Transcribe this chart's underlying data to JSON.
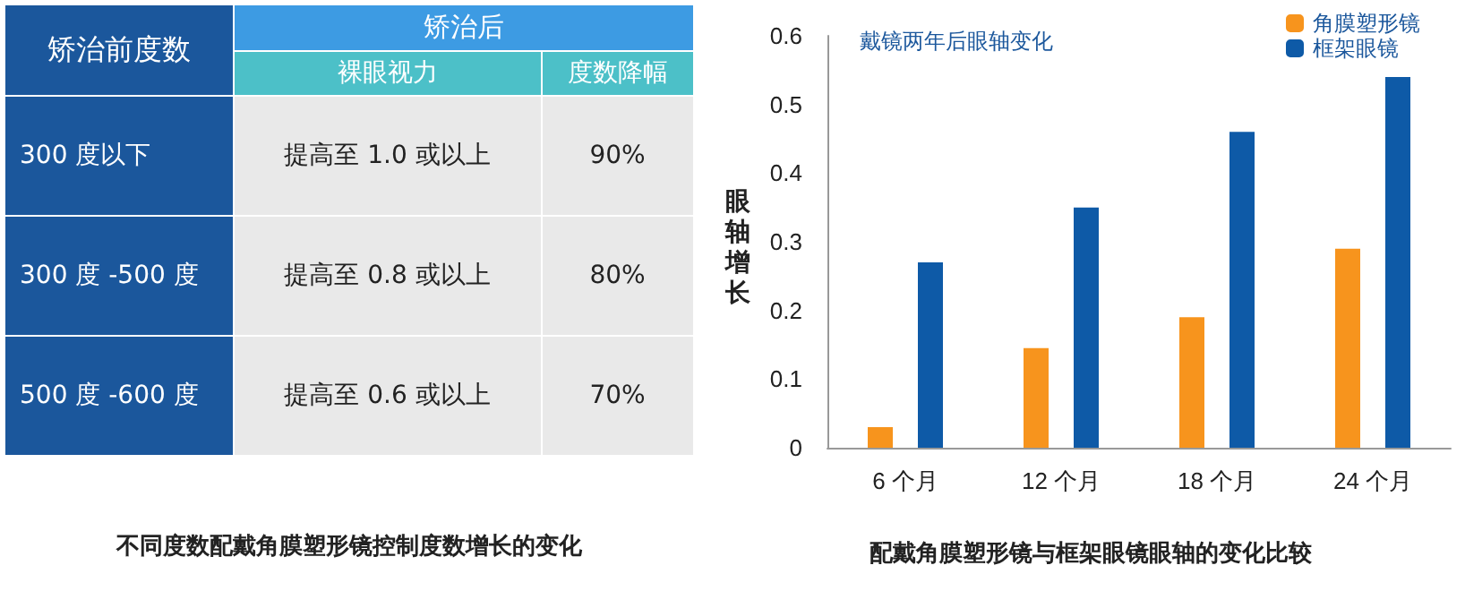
{
  "chart_data": [
    {
      "type": "other",
      "title": "不同度数配戴角膜塑形镜控制度数增长的变化",
      "annotations": [
        "矫治前度数",
        "矫治后",
        "裸眼视力",
        "度数降幅",
        "300 度以下",
        "提高至 1.0 或以上",
        "90%",
        "300 度 -500 度",
        "提高至 0.8 或以上",
        "80%",
        "500 度 -600 度",
        "提高至 0.6 或以上",
        "70%"
      ]
    },
    {
      "type": "bar",
      "title": "戴镜两年后眼轴变化",
      "ylabel": "眼轴增长",
      "annotations": [
        "配戴角膜塑形镜与框架眼镜眼轴的变化比较"
      ],
      "categories": [
        "6 个月",
        "12 个月",
        "18 个月",
        "24 个月"
      ],
      "series": [
        {
          "name": "角膜塑形镜",
          "color": "#f7941d",
          "values": [
            0.03,
            0.145,
            0.19,
            0.29
          ]
        },
        {
          "name": "框架眼镜",
          "color": "#0e5aa7",
          "values": [
            0.27,
            0.35,
            0.46,
            0.54
          ]
        }
      ],
      "ylim": [
        0,
        0.6
      ],
      "yticks": [
        0,
        0.1,
        0.2,
        0.3,
        0.4,
        0.5,
        0.6
      ],
      "grid": false,
      "legend": "top right"
    }
  ]
}
